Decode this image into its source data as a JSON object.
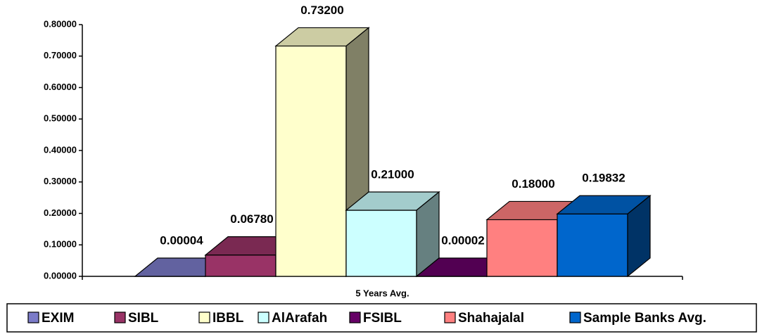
{
  "chart_data": {
    "type": "bar3d",
    "categories": [
      "5 Years Avg."
    ],
    "series": [
      {
        "name": "EXIM",
        "color": "#7B7BC8",
        "values": [
          4e-05
        ],
        "value_labels": [
          "0.00004"
        ]
      },
      {
        "name": "SIBL",
        "color": "#993366",
        "values": [
          0.0678
        ],
        "value_labels": [
          "0.06780"
        ]
      },
      {
        "name": "IBBL",
        "color": "#FFFFCC",
        "values": [
          0.732
        ],
        "value_labels": [
          "0.73200"
        ]
      },
      {
        "name": "AlArafah",
        "color": "#CCFFFF",
        "values": [
          0.21
        ],
        "value_labels": [
          "0.21000"
        ]
      },
      {
        "name": "FSIBL",
        "color": "#660066",
        "values": [
          2e-05
        ],
        "value_labels": [
          "0.00002"
        ]
      },
      {
        "name": "Shahajalal",
        "color": "#FF8080",
        "values": [
          0.18
        ],
        "value_labels": [
          "0.18000"
        ]
      },
      {
        "name": "Sample Banks Avg.",
        "color": "#0066CC",
        "values": [
          0.19832
        ],
        "value_labels": [
          "0.19832"
        ]
      }
    ],
    "ylim": [
      0,
      0.8
    ],
    "yticks": [
      {
        "value": 0,
        "label": "0.00000"
      },
      {
        "value": 0.1,
        "label": "0.10000"
      },
      {
        "value": 0.2,
        "label": "0.20000"
      },
      {
        "value": 0.3,
        "label": "0.30000"
      },
      {
        "value": 0.4,
        "label": "0.40000"
      },
      {
        "value": 0.5,
        "label": "0.50000"
      },
      {
        "value": 0.6,
        "label": "0.60000"
      },
      {
        "value": 0.7,
        "label": "0.70000"
      },
      {
        "value": 0.8,
        "label": "0.80000"
      }
    ],
    "legend": "bottom"
  }
}
